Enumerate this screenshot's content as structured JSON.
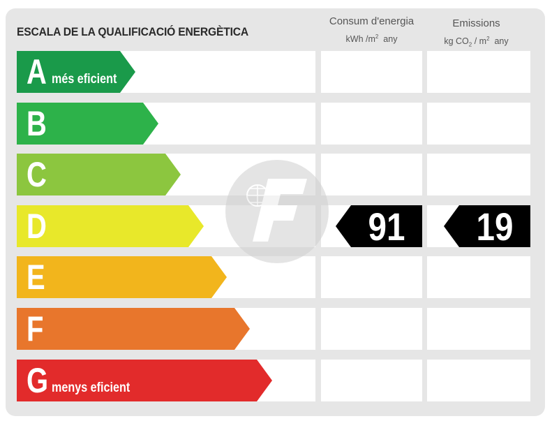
{
  "title": "ESCALA DE LA QUALIFICACIÓ ENERGÈTICA",
  "columns": {
    "consumption": {
      "label": "Consum d'energia",
      "unit_prefix": "kWh /m",
      "unit_sup": "2",
      "unit_suffix": "any"
    },
    "emissions": {
      "label": "Emissions",
      "unit_prefix": "kg CO",
      "unit_sub": "2",
      "unit_mid": "/ m",
      "unit_sup": "2",
      "unit_suffix": "any"
    }
  },
  "ratings": [
    {
      "letter": "A",
      "description": "més eficient",
      "color": "#1a9a4a"
    },
    {
      "letter": "B",
      "description": "",
      "color": "#2db24a"
    },
    {
      "letter": "C",
      "description": "",
      "color": "#8cc63f"
    },
    {
      "letter": "D",
      "description": "",
      "color": "#e8e82a"
    },
    {
      "letter": "E",
      "description": "",
      "color": "#f2b51c"
    },
    {
      "letter": "F",
      "description": "",
      "color": "#e8762c"
    },
    {
      "letter": "G",
      "description": "menys eficient",
      "color": "#e22b2b"
    }
  ],
  "current": {
    "rating": "D",
    "consumption_value": "91",
    "emissions_value": "19"
  }
}
